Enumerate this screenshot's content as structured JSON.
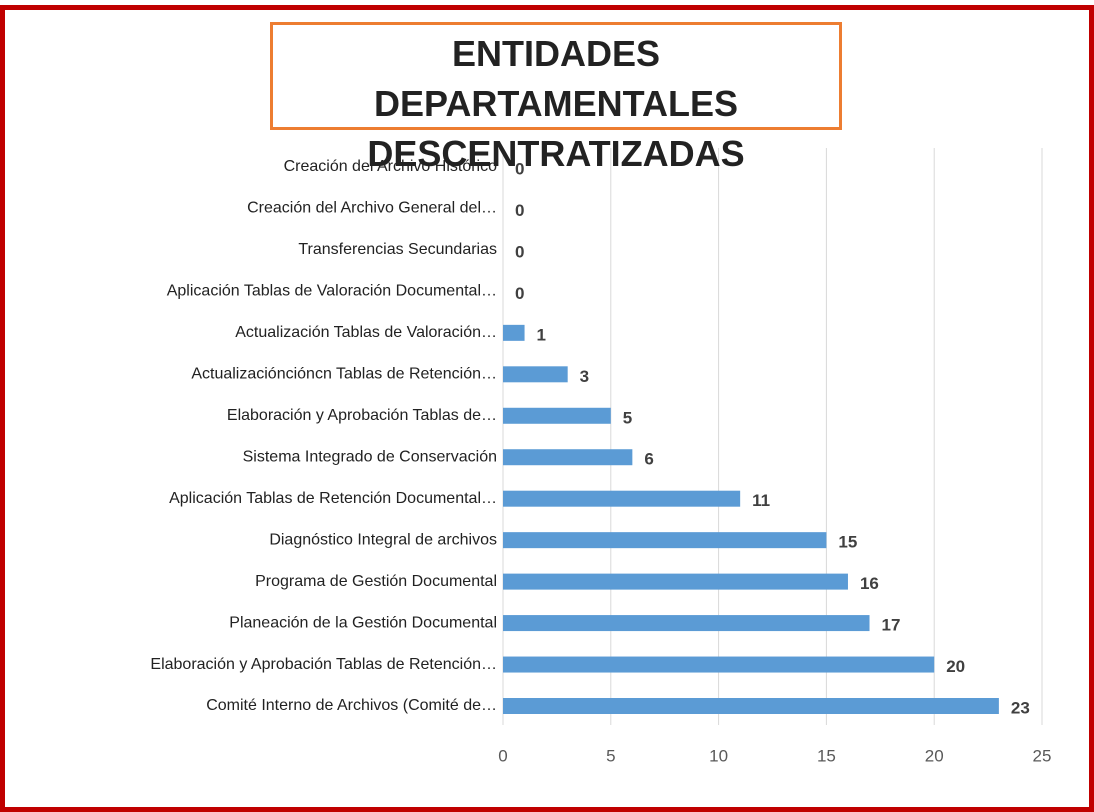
{
  "chart_data": {
    "type": "barh",
    "title": "ENTIDADES DEPARTAMENTALES DESCENTRATIZADAS",
    "categories": [
      "Creación del Archivo Histórico",
      "Creación del Archivo General del…",
      "Transferencias Secundarias",
      "Aplicación Tablas de Valoración Documental…",
      "Actualización Tablas de Valoración…",
      "Actualizacióncióncn Tablas de Retención…",
      "Elaboración y Aprobación Tablas de…",
      "Sistema Integrado de Conservación",
      "Aplicación Tablas de Retención Documental…",
      "Diagnóstico Integral de archivos",
      "Programa de Gestión Documental",
      "Planeación de la Gestión Documental",
      "Elaboración y Aprobación Tablas de Retención…",
      "Comité Interno de Archivos (Comité de…"
    ],
    "values": [
      0,
      0,
      0,
      0,
      1,
      3,
      5,
      6,
      11,
      15,
      16,
      17,
      20,
      23
    ],
    "color": "#5b9bd5",
    "xlim": [
      0,
      25
    ],
    "xticks": [
      0,
      5,
      10,
      15,
      20,
      25
    ],
    "grid": true
  }
}
